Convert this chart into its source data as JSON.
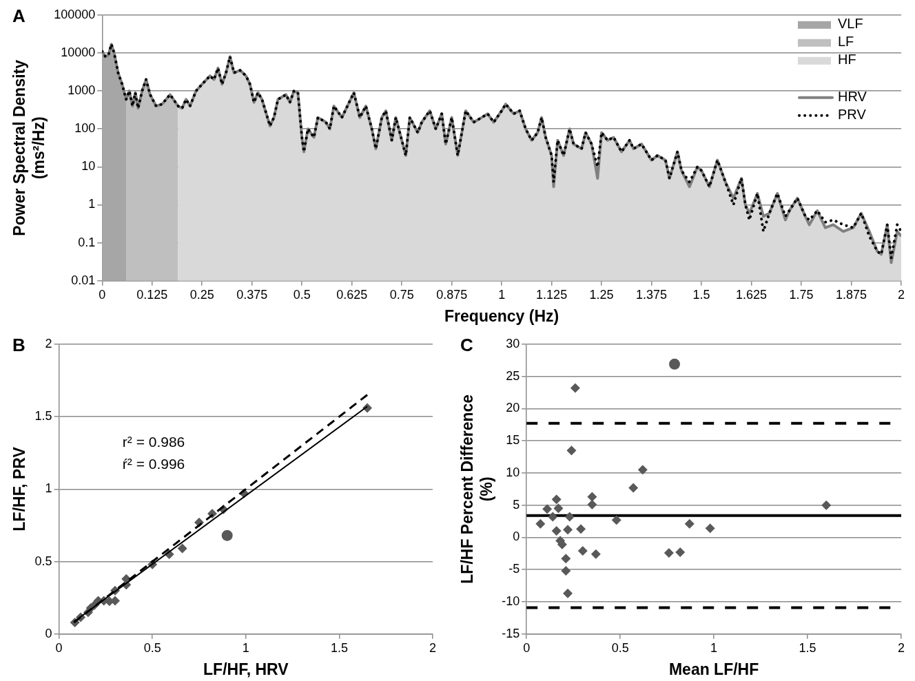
{
  "chart_data": [
    {
      "type": "line",
      "title": "A",
      "xlabel": "Frequency (Hz)",
      "ylabel": "Power Spectral Density (ms²/Hz)",
      "log": "y",
      "grid": "y",
      "legend": "top right",
      "xlim": [
        0,
        2
      ],
      "xticks": [
        0,
        0.125,
        0.25,
        0.375,
        0.5,
        0.625,
        0.75,
        0.875,
        1,
        1.125,
        1.25,
        1.375,
        1.5,
        1.625,
        1.75,
        1.875,
        2
      ],
      "ylim": [
        0.01,
        100000
      ],
      "yticks": [
        0.01,
        0.1,
        1,
        10,
        100,
        1000,
        10000,
        100000
      ],
      "x": [
        0,
        0.008,
        0.016,
        0.023,
        0.03,
        0.04,
        0.05,
        0.06,
        0.068,
        0.076,
        0.083,
        0.09,
        0.1,
        0.11,
        0.12,
        0.135,
        0.15,
        0.17,
        0.19,
        0.2,
        0.21,
        0.22,
        0.235,
        0.25,
        0.27,
        0.28,
        0.29,
        0.3,
        0.31,
        0.32,
        0.33,
        0.345,
        0.36,
        0.37,
        0.38,
        0.39,
        0.4,
        0.42,
        0.43,
        0.44,
        0.46,
        0.47,
        0.48,
        0.49,
        0.5,
        0.505,
        0.515,
        0.53,
        0.54,
        0.56,
        0.57,
        0.58,
        0.6,
        0.63,
        0.645,
        0.66,
        0.675,
        0.685,
        0.7,
        0.71,
        0.725,
        0.735,
        0.75,
        0.76,
        0.77,
        0.79,
        0.8,
        0.82,
        0.835,
        0.85,
        0.86,
        0.875,
        0.89,
        0.91,
        0.93,
        0.95,
        0.965,
        0.98,
        1,
        1.01,
        1.03,
        1.045,
        1.06,
        1.075,
        1.09,
        1.1,
        1.11,
        1.125,
        1.13,
        1.14,
        1.155,
        1.17,
        1.18,
        1.2,
        1.21,
        1.225,
        1.24,
        1.25,
        1.265,
        1.28,
        1.3,
        1.32,
        1.33,
        1.35,
        1.375,
        1.39,
        1.41,
        1.42,
        1.44,
        1.45,
        1.47,
        1.49,
        1.5,
        1.52,
        1.54,
        1.56,
        1.58,
        1.6,
        1.61,
        1.62,
        1.64,
        1.655,
        1.67,
        1.69,
        1.71,
        1.72,
        1.74,
        1.76,
        1.77,
        1.79,
        1.81,
        1.83,
        1.855,
        1.88,
        1.9,
        1.92,
        1.94,
        1.95,
        1.965,
        1.975,
        1.99,
        2
      ],
      "series": [
        {
          "name": "VLF",
          "type": "area",
          "color": "#a6a6a6",
          "x": [
            0,
            0.008,
            0.016,
            0.023,
            0.03,
            0.04,
            0.05,
            0.06
          ],
          "values": [
            11000,
            8000,
            9000,
            17000,
            10000,
            3000,
            1500,
            600
          ]
        },
        {
          "name": "LF",
          "type": "area",
          "color": "#bfbfbf",
          "x": [
            0.06,
            0.068,
            0.076,
            0.083,
            0.09,
            0.1,
            0.11,
            0.12,
            0.135,
            0.15,
            0.17,
            0.19
          ],
          "values": [
            600,
            1000,
            400,
            900,
            350,
            1000,
            2000,
            800,
            400,
            450,
            800,
            400
          ]
        },
        {
          "name": "HF",
          "type": "area",
          "color": "#d9d9d9",
          "x": [
            0.19,
            0.2,
            0.21,
            0.22,
            0.235,
            0.25,
            0.27,
            0.28,
            0.29,
            0.3,
            0.31,
            0.32,
            0.33,
            0.345,
            0.36,
            0.37,
            0.38,
            0.39,
            0.4,
            0.42,
            0.43,
            0.44,
            0.46,
            0.47,
            0.48,
            0.49,
            0.5,
            0.505,
            0.515,
            0.53,
            0.54,
            0.56,
            0.57,
            0.58,
            0.6,
            0.63,
            0.645,
            0.66,
            0.675,
            0.685,
            0.7,
            0.71,
            0.725,
            0.735,
            0.75,
            0.76,
            0.77,
            0.79,
            0.8,
            0.82,
            0.835,
            0.85,
            0.86,
            0.875,
            0.89,
            0.91,
            0.93,
            0.95,
            0.965,
            0.98,
            1,
            1.01,
            1.03,
            1.045,
            1.06,
            1.075,
            1.09,
            1.1,
            1.11,
            1.125,
            1.13,
            1.14,
            1.155,
            1.17,
            1.18,
            1.2,
            1.21,
            1.225,
            1.24,
            1.25,
            1.265,
            1.28,
            1.3,
            1.32,
            1.33,
            1.35,
            1.375,
            1.39,
            1.41,
            1.42,
            1.44,
            1.45,
            1.47,
            1.49,
            1.5,
            1.52,
            1.54,
            1.56,
            1.58,
            1.6,
            1.61,
            1.62,
            1.64,
            1.655,
            1.67,
            1.69,
            1.71,
            1.72,
            1.74,
            1.76,
            1.77,
            1.79,
            1.81,
            1.83,
            1.855,
            1.88,
            1.9,
            1.92,
            1.94,
            1.95,
            1.965,
            1.975,
            1.99,
            2
          ],
          "values": [
            400,
            350,
            600,
            400,
            1000,
            1500,
            2500,
            2000,
            4000,
            1500,
            3000,
            8000,
            3000,
            3500,
            2500,
            1500,
            500,
            900,
            600,
            120,
            200,
            600,
            800,
            500,
            1000,
            900,
            60,
            25,
            100,
            60,
            200,
            150,
            100,
            400,
            200,
            900,
            200,
            400,
            100,
            30,
            200,
            300,
            50,
            200,
            50,
            20,
            200,
            80,
            150,
            300,
            100,
            250,
            40,
            200,
            20,
            300,
            150,
            200,
            250,
            150,
            300,
            450,
            250,
            300,
            100,
            50,
            80,
            200,
            60,
            20,
            3,
            50,
            20,
            100,
            40,
            30,
            80,
            40,
            5,
            80,
            50,
            60,
            25,
            50,
            30,
            40,
            15,
            20,
            15,
            5,
            25,
            8,
            3,
            10,
            8,
            3,
            15,
            4,
            1.5,
            5,
            1,
            0.6,
            2,
            0.5,
            0.6,
            2,
            0.4,
            0.7,
            1.5,
            0.5,
            0.3,
            0.7,
            0.25,
            0.3,
            0.2,
            0.25,
            0.6,
            0.2,
            0.06,
            0.05,
            0.3,
            0.03,
            0.2,
            0.15
          ]
        },
        {
          "name": "HRV",
          "color": "#808080",
          "line_style": "solid",
          "values": [
            11000,
            8000,
            9000,
            17000,
            10000,
            3000,
            1500,
            600,
            1000,
            400,
            900,
            350,
            1000,
            2000,
            800,
            400,
            450,
            800,
            400,
            350,
            600,
            400,
            1000,
            1500,
            2500,
            2000,
            4000,
            1500,
            3000,
            8000,
            3000,
            3500,
            2500,
            1500,
            500,
            900,
            600,
            120,
            200,
            600,
            800,
            500,
            1000,
            900,
            60,
            25,
            100,
            60,
            200,
            150,
            100,
            400,
            200,
            900,
            200,
            400,
            100,
            30,
            200,
            300,
            50,
            200,
            50,
            20,
            200,
            80,
            150,
            300,
            100,
            250,
            40,
            200,
            20,
            300,
            150,
            200,
            250,
            150,
            300,
            450,
            250,
            300,
            100,
            50,
            80,
            200,
            60,
            20,
            3,
            50,
            20,
            100,
            40,
            30,
            80,
            40,
            5,
            80,
            50,
            60,
            25,
            50,
            30,
            40,
            15,
            20,
            15,
            5,
            25,
            8,
            3,
            10,
            8,
            3,
            15,
            4,
            1.5,
            5,
            1,
            0.6,
            2,
            0.5,
            0.6,
            2,
            0.4,
            0.7,
            1.5,
            0.5,
            0.3,
            0.7,
            0.25,
            0.3,
            0.2,
            0.25,
            0.6,
            0.2,
            0.06,
            0.05,
            0.3,
            0.03,
            0.2,
            0.15
          ]
        },
        {
          "name": "PRV",
          "color": "#000000",
          "line_style": "dotted",
          "values": [
            11000,
            8000,
            9000,
            17000,
            10000,
            3000,
            1500,
            600,
            1000,
            400,
            900,
            350,
            1000,
            2000,
            800,
            400,
            450,
            800,
            400,
            350,
            600,
            400,
            1000,
            1500,
            2500,
            2000,
            4000,
            1500,
            3000,
            8000,
            3000,
            3500,
            2500,
            1500,
            500,
            900,
            600,
            120,
            200,
            600,
            800,
            500,
            1000,
            900,
            60,
            25,
            100,
            60,
            200,
            150,
            100,
            400,
            200,
            900,
            200,
            400,
            100,
            30,
            200,
            300,
            50,
            200,
            50,
            20,
            200,
            80,
            150,
            300,
            100,
            250,
            40,
            200,
            20,
            300,
            150,
            200,
            250,
            150,
            300,
            450,
            250,
            300,
            100,
            50,
            80,
            200,
            60,
            20,
            4,
            50,
            20,
            100,
            40,
            30,
            80,
            40,
            10,
            80,
            50,
            60,
            25,
            50,
            30,
            40,
            15,
            20,
            15,
            5,
            25,
            8,
            4,
            10,
            8,
            3,
            15,
            4,
            1,
            5,
            1,
            0.4,
            2,
            0.2,
            0.6,
            2,
            0.5,
            0.7,
            1.5,
            0.5,
            0.4,
            0.7,
            0.35,
            0.4,
            0.3,
            0.25,
            0.6,
            0.15,
            0.06,
            0.05,
            0.3,
            0.04,
            0.3,
            0.2
          ]
        }
      ]
    },
    {
      "type": "scatter",
      "title": "B",
      "xlabel": "LF/HF, HRV",
      "ylabel": "LF/HF, PRV",
      "grid": "y",
      "xlim": [
        0,
        2
      ],
      "xticks": [
        0,
        0.5,
        1,
        1.5,
        2
      ],
      "ylim": [
        0,
        2
      ],
      "yticks": [
        0,
        0.5,
        1,
        1.5,
        2
      ],
      "annotations": [
        "r² = 0.986",
        "ŕ² = 0.996"
      ],
      "series": [
        {
          "marker": "diamond",
          "color": "#595959",
          "x": [
            0.085,
            0.116,
            0.156,
            0.17,
            0.19,
            0.21,
            0.24,
            0.27,
            0.3,
            0.3,
            0.36,
            0.36,
            0.5,
            0.59,
            0.66,
            0.75,
            0.82,
            0.88,
            0.99,
            1.65
          ],
          "values": [
            0.08,
            0.116,
            0.15,
            0.18,
            0.2,
            0.23,
            0.23,
            0.226,
            0.23,
            0.3,
            0.34,
            0.38,
            0.48,
            0.55,
            0.59,
            0.77,
            0.83,
            0.86,
            0.97,
            1.56
          ]
        },
        {
          "marker": "circle",
          "color": "#595959",
          "x": [
            0.9
          ],
          "values": [
            0.68
          ]
        },
        {
          "type": "line",
          "line_style": "dashed",
          "color": "#000000",
          "x": [
            0.08,
            1.65
          ],
          "values": [
            0.08,
            1.65
          ]
        },
        {
          "type": "line",
          "line_style": "solid",
          "color": "#000000",
          "x": [
            0.08,
            1.65
          ],
          "values": [
            0.085,
            1.57
          ]
        }
      ]
    },
    {
      "type": "scatter",
      "title": "C",
      "xlabel": "Mean LF/HF",
      "ylabel": "LF/HF Percent Difference (%)",
      "grid": "y",
      "xlim": [
        0,
        2
      ],
      "xticks": [
        0,
        0.5,
        1,
        1.5,
        2
      ],
      "ylim": [
        -15,
        30
      ],
      "yticks": [
        -15,
        -10,
        -5,
        0,
        5,
        10,
        15,
        20,
        25,
        30
      ],
      "ref_lines": [
        {
          "axis": "y",
          "value": 17.7,
          "color": "#000000",
          "line_style": "dashed"
        },
        {
          "axis": "y",
          "value": 3.4,
          "color": "#000000",
          "line_style": "solid"
        },
        {
          "axis": "y",
          "value": -10.9,
          "color": "#000000",
          "line_style": "dashed"
        }
      ],
      "series": [
        {
          "marker": "diamond",
          "color": "#595959",
          "x": [
            0.074,
            0.11,
            0.14,
            0.16,
            0.17,
            0.16,
            0.22,
            0.23,
            0.18,
            0.19,
            0.21,
            0.21,
            0.22,
            0.24,
            0.26,
            0.29,
            0.3,
            0.35,
            0.35,
            0.37,
            0.48,
            0.57,
            0.62,
            0.76,
            0.82,
            0.87,
            0.98,
            1.6
          ],
          "values": [
            2.1,
            4.4,
            3.2,
            5.9,
            4.5,
            1,
            1.2,
            3.2,
            -0.5,
            -1.1,
            -3.3,
            -5.2,
            -8.7,
            13.5,
            23.2,
            1.3,
            -2.1,
            6.3,
            5.1,
            -2.6,
            2.7,
            7.7,
            10.5,
            -2.4,
            -2.3,
            2.1,
            1.4,
            5
          ]
        },
        {
          "marker": "circle",
          "color": "#595959",
          "x": [
            0.79
          ],
          "values": [
            26.9
          ]
        }
      ]
    }
  ]
}
